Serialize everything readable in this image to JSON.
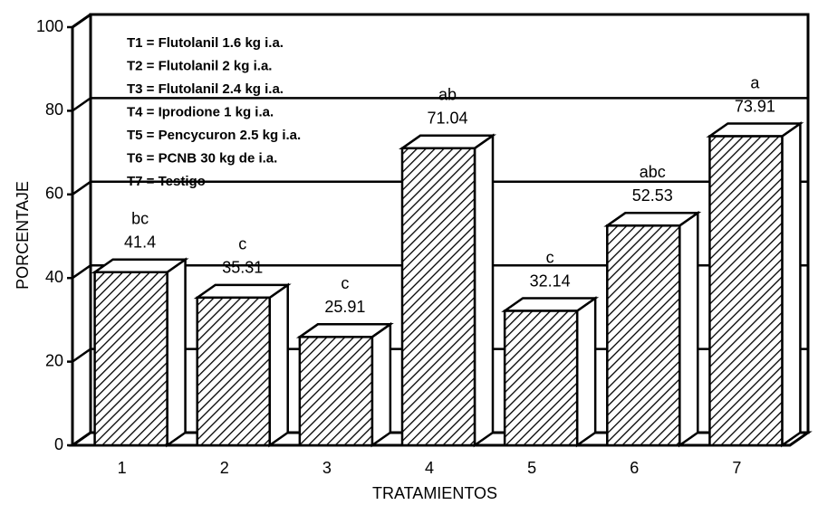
{
  "chart_data": {
    "type": "bar",
    "y_label": "PORCENTAJE",
    "x_label": "TRATAMIENTOS",
    "categories": [
      "1",
      "2",
      "3",
      "4",
      "5",
      "6",
      "7"
    ],
    "values": [
      41.4,
      35.31,
      25.91,
      71.04,
      32.14,
      52.53,
      73.91
    ],
    "annotations": [
      "bc",
      "c",
      "c",
      "ab",
      "c",
      "abc",
      "a"
    ],
    "legend_lines": [
      "T1 = Flutolanil 1.6 kg i.a.",
      "T2 = Flutolanil 2 kg i.a.",
      "T3 = Flutolanil 2.4 kg i.a.",
      "T4 = Iprodione 1 kg i.a.",
      "T5 = Pencycuron 2.5 kg i.a.",
      "T6 = PCNB 30 kg de i.a.",
      "T7 = Testigo"
    ],
    "color": "#000000",
    "ylim": [
      0,
      100
    ],
    "yticks": [
      0,
      20,
      40,
      60,
      80,
      100
    ],
    "grid": true
  }
}
